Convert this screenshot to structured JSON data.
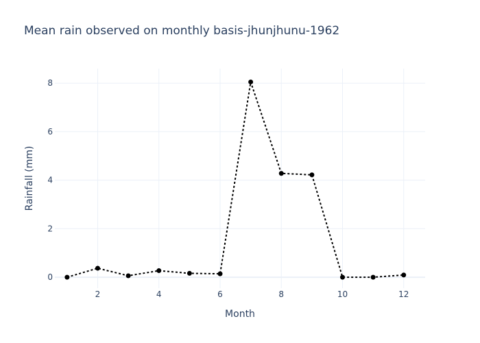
{
  "chart_data": {
    "type": "line",
    "title": "Mean rain observed on monthly basis-jhunjhunu-1962",
    "xlabel": "Month",
    "ylabel": "Rainfall (mm)",
    "xlim": [
      0.6,
      12.7
    ],
    "ylim": [
      -0.45,
      8.6
    ],
    "x_ticks": [
      2,
      4,
      6,
      8,
      10,
      12
    ],
    "y_ticks": [
      0,
      2,
      4,
      6,
      8
    ],
    "grid": true,
    "series": [
      {
        "x": [
          1,
          2,
          3,
          4,
          5,
          6,
          7,
          8,
          9,
          10,
          11,
          12
        ],
        "values": [
          0.0,
          0.37,
          0.06,
          0.27,
          0.16,
          0.14,
          8.05,
          4.28,
          4.22,
          0.0,
          0.0,
          0.09
        ],
        "line_style": "dot",
        "color": "#000000"
      }
    ]
  }
}
